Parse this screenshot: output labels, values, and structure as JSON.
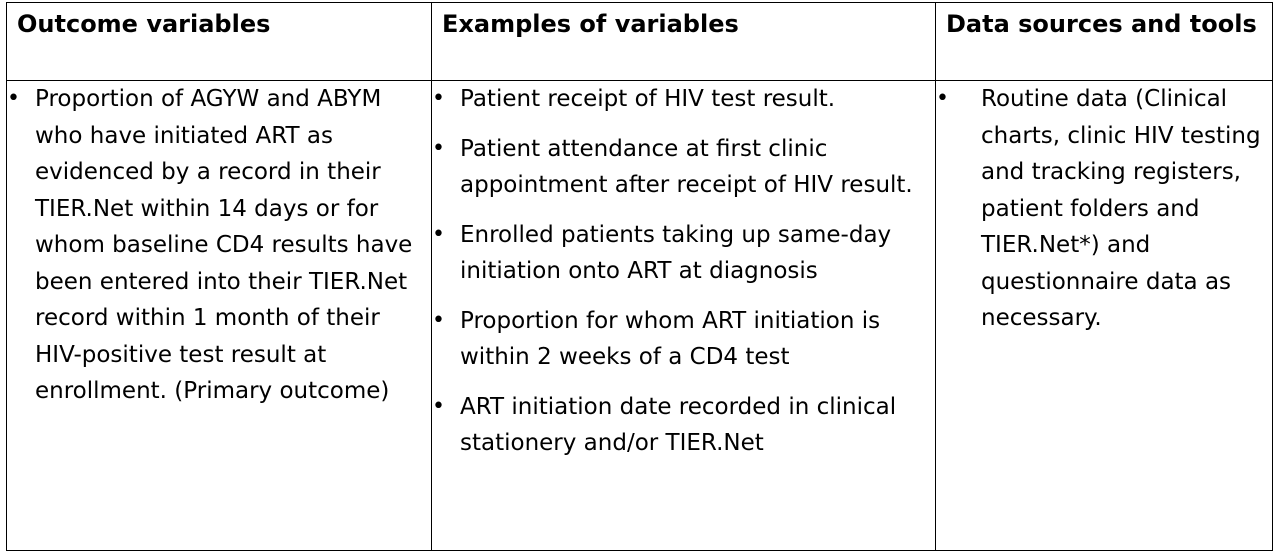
{
  "table": {
    "headers": [
      "Outcome variables",
      "Examples of variables",
      "Data sources and tools"
    ],
    "outcome_variables": [
      "Proportion of AGYW and ABYM who have initiated ART as evidenced by a record in their TIER.Net within 14 days or for whom baseline CD4 results have been entered into their TIER.Net record within 1 month of their HIV-positive test result at enrollment. (Primary outcome)"
    ],
    "examples_of_variables": [
      "Patient receipt of HIV test result.",
      "Patient attendance at first clinic appointment after receipt of HIV result.",
      "Enrolled patients taking up same-day initiation onto ART at diagnosis",
      "Proportion for whom ART initiation is within 2 weeks of a CD4 test",
      "ART initiation date recorded in clinical stationery and/or TIER.Net"
    ],
    "data_sources_and_tools": [
      "Routine data (Clinical charts, clinic HIV testing and tracking registers, patient folders and TIER.Net*) and questionnaire data as necessary."
    ]
  }
}
